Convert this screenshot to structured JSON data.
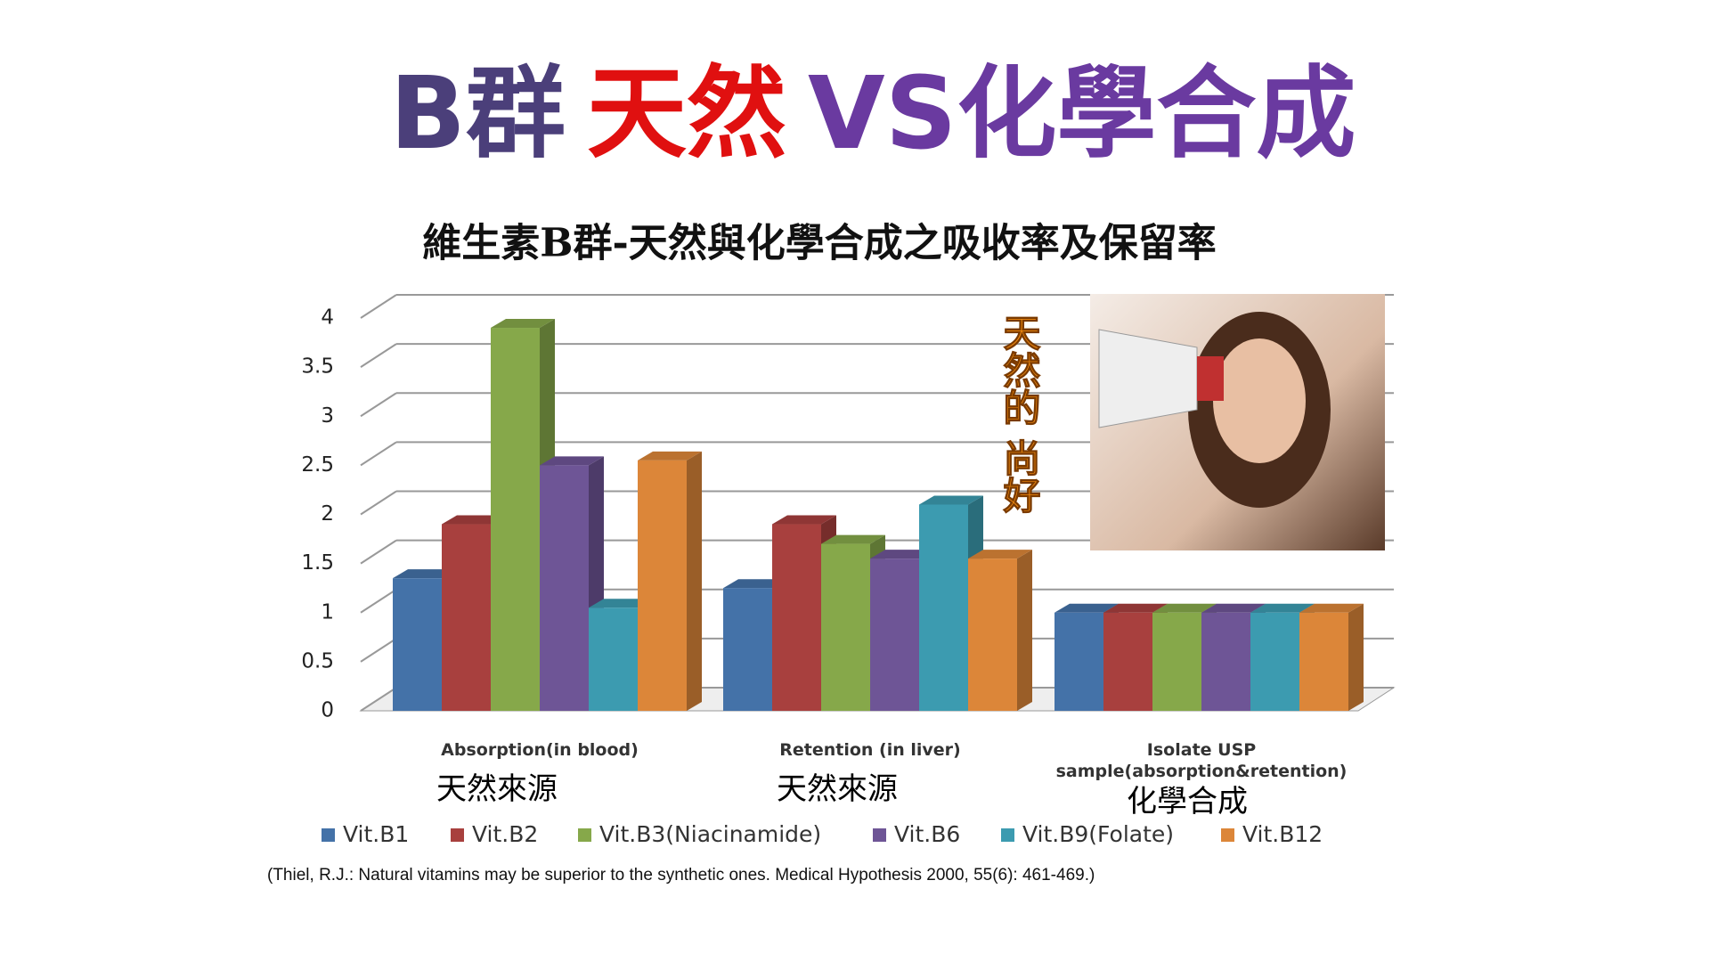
{
  "chart_data": {
    "type": "bar3d",
    "title_parts": [
      {
        "text": "B群",
        "color": "#4b3f7a"
      },
      {
        "text": "天然",
        "color": "#e01010"
      },
      {
        "text": "VS化學合成",
        "color": "#6a3aa0"
      }
    ],
    "subtitle": "維生素B群-天然與化學合成之吸收率及保留率",
    "categories": [
      "Absorption(in blood)",
      "Retention (in liver)",
      "Isolate USP sample(absorption&retention)"
    ],
    "category_notes": [
      "天然來源",
      "天然來源",
      "化學合成"
    ],
    "annotation": "天然的 尚好",
    "series": [
      {
        "name": "Vit.B1",
        "color": "#4472a8",
        "values": [
          1.35,
          1.25,
          1
        ]
      },
      {
        "name": "Vit.B2",
        "color": "#a8403e",
        "values": [
          1.9,
          1.9,
          1
        ]
      },
      {
        "name": "Vit.B3(Niacinamide)",
        "color": "#86a84a",
        "values": [
          3.9,
          1.7,
          1
        ]
      },
      {
        "name": "Vit.B6",
        "color": "#6e5596",
        "values": [
          2.5,
          1.55,
          1
        ]
      },
      {
        "name": "Vit.B9(Folate)",
        "color": "#3c9bb0",
        "values": [
          1.05,
          2.1,
          1
        ]
      },
      {
        "name": "Vit.B12",
        "color": "#dc8639",
        "values": [
          2.55,
          1.55,
          1
        ]
      }
    ],
    "ylim": [
      0,
      4
    ],
    "yticks": [
      0,
      0.5,
      1,
      1.5,
      2,
      2.5,
      3,
      3.5,
      4
    ],
    "grid": true,
    "legend": "bottom",
    "citation": "(Thiel, R.J.: Natural vitamins may be superior to the synthetic ones. Medical Hypothesis 2000, 55(6): 461-469.)"
  }
}
